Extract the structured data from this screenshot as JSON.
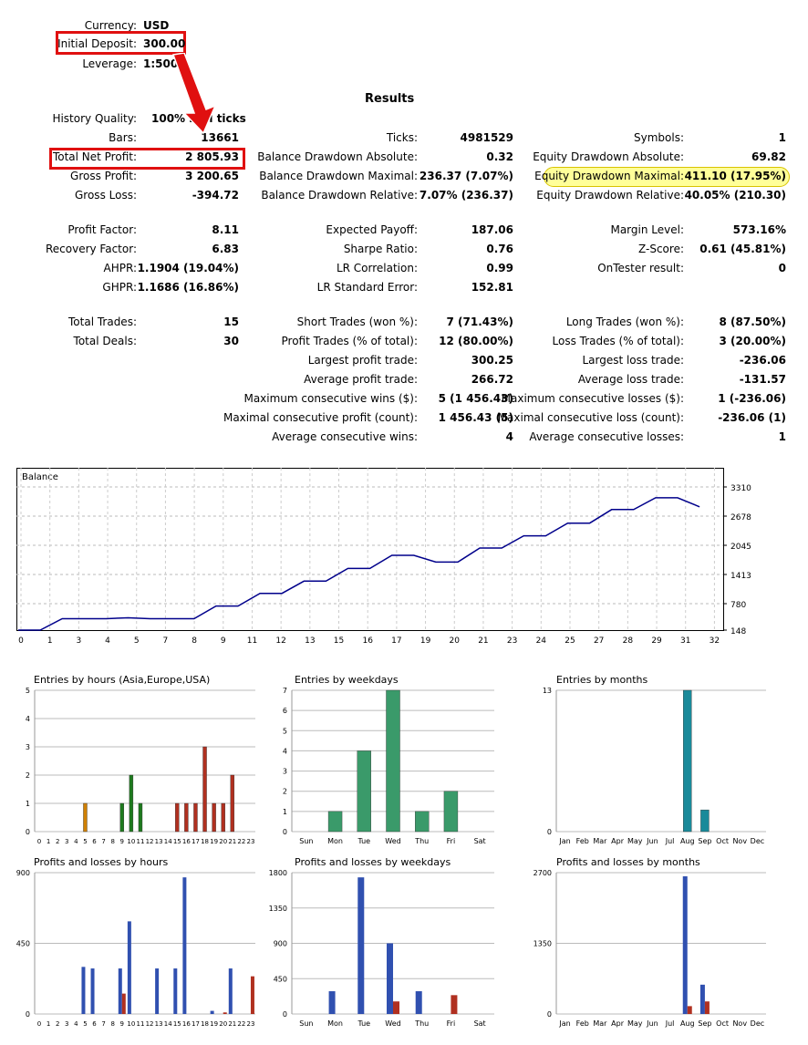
{
  "header": {
    "currency_label": "Currency:",
    "currency_value": "USD",
    "deposit_label": "Initial Deposit:",
    "deposit_value": "300.00",
    "leverage_label": "Leverage:",
    "leverage_value": "1:500",
    "results_title": "Results"
  },
  "col1": [
    {
      "label": "History Quality:",
      "value": "100% real ticks"
    },
    {
      "label": "Bars:",
      "value": "13661"
    },
    {
      "label": "Total Net Profit:",
      "value": "2 805.93"
    },
    {
      "label": "Gross Profit:",
      "value": "3 200.65"
    },
    {
      "label": "Gross Loss:",
      "value": "-394.72"
    },
    {
      "label": "Profit Factor:",
      "value": "8.11"
    },
    {
      "label": "Recovery Factor:",
      "value": "6.83"
    },
    {
      "label": "AHPR:",
      "value": "1.1904 (19.04%)"
    },
    {
      "label": "GHPR:",
      "value": "1.1686 (16.86%)"
    },
    {
      "label": "Total Trades:",
      "value": "15"
    },
    {
      "label": "Total Deals:",
      "value": "30"
    }
  ],
  "col2": [
    {
      "label": "Ticks:",
      "value": "4981529"
    },
    {
      "label": "Balance Drawdown Absolute:",
      "value": "0.32"
    },
    {
      "label": "Balance Drawdown Maximal:",
      "value": "236.37 (7.07%)"
    },
    {
      "label": "Balance Drawdown Relative:",
      "value": "7.07% (236.37)"
    },
    {
      "label": "Expected Payoff:",
      "value": "187.06"
    },
    {
      "label": "Sharpe Ratio:",
      "value": "0.76"
    },
    {
      "label": "LR Correlation:",
      "value": "0.99"
    },
    {
      "label": "LR Standard Error:",
      "value": "152.81"
    },
    {
      "label": "Short Trades (won %):",
      "value": "7 (71.43%)"
    },
    {
      "label": "Profit Trades (% of total):",
      "value": "12 (80.00%)"
    },
    {
      "label": "Largest profit trade:",
      "value": "300.25"
    },
    {
      "label": "Average profit trade:",
      "value": "266.72"
    },
    {
      "label": "Maximum consecutive wins ($):",
      "value": "5 (1 456.43)"
    },
    {
      "label": "Maximal consecutive profit (count):",
      "value": "1 456.43 (5)"
    },
    {
      "label": "Average consecutive wins:",
      "value": "4"
    }
  ],
  "col3": [
    {
      "label": "Symbols:",
      "value": "1"
    },
    {
      "label": "Equity Drawdown Absolute:",
      "value": "69.82"
    },
    {
      "label": "Equity Drawdown Maximal:",
      "value": "411.10 (17.95%)"
    },
    {
      "label": "Equity Drawdown Relative:",
      "value": "40.05% (210.30)"
    },
    {
      "label": "Margin Level:",
      "value": "573.16%"
    },
    {
      "label": "Z-Score:",
      "value": "0.61 (45.81%)"
    },
    {
      "label": "OnTester result:",
      "value": "0"
    },
    {
      "label": "Long Trades (won %):",
      "value": "8 (87.50%)"
    },
    {
      "label": "Loss Trades (% of total):",
      "value": "3 (20.00%)"
    },
    {
      "label": "Largest loss trade:",
      "value": "-236.06"
    },
    {
      "label": "Average loss trade:",
      "value": "-131.57"
    },
    {
      "label": "Maximum consecutive losses ($):",
      "value": "1 (-236.06)"
    },
    {
      "label": "Maximal consecutive loss (count):",
      "value": "-236.06 (1)"
    },
    {
      "label": "Average consecutive losses:",
      "value": "1"
    }
  ],
  "colors": {
    "highlight_box": "#e01010",
    "highlight_pill": "#ffff99",
    "balance_line": "#00008b",
    "bar_green": "#1e7a1e",
    "bar_orange": "#d08000",
    "bar_red": "#b03020",
    "bar_blue": "#3050b0",
    "bar_teal": "#1a8a9a",
    "bar_sea": "#3a9a6a"
  },
  "chart_data": [
    {
      "type": "line",
      "title": "Balance",
      "x": [
        0,
        1,
        2,
        3,
        4,
        5,
        6,
        7,
        8,
        9,
        10,
        11,
        12,
        13,
        14,
        15,
        16,
        17,
        18,
        19,
        20,
        21,
        22,
        23,
        24,
        25,
        26,
        27,
        28,
        29,
        30,
        31
      ],
      "y": [
        148,
        148,
        400,
        400,
        400,
        420,
        400,
        400,
        400,
        680,
        680,
        960,
        960,
        1230,
        1230,
        1510,
        1510,
        1800,
        1800,
        1650,
        1650,
        1960,
        1960,
        2230,
        2230,
        2510,
        2510,
        2810,
        2810,
        3070,
        3070,
        2870
      ],
      "x_ticks": [
        "0",
        "1",
        "3",
        "4",
        "5",
        "7",
        "8",
        "9",
        "11",
        "12",
        "13",
        "15",
        "16",
        "17",
        "19",
        "20",
        "21",
        "23",
        "24",
        "25",
        "27",
        "28",
        "29",
        "31",
        "32"
      ],
      "y_ticks": [
        "3310",
        "2678",
        "2045",
        "1413",
        "780",
        "148"
      ],
      "ylim": [
        148,
        3500
      ]
    },
    {
      "type": "bar",
      "title": "Entries by hours (Asia,Europe,USA)",
      "categories": [
        "0",
        "1",
        "2",
        "3",
        "4",
        "5",
        "6",
        "7",
        "8",
        "9",
        "10",
        "11",
        "12",
        "13",
        "14",
        "15",
        "16",
        "17",
        "18",
        "19",
        "20",
        "21",
        "22",
        "23"
      ],
      "values": [
        0,
        0,
        0,
        0,
        0,
        1,
        0,
        0,
        0,
        1,
        2,
        1,
        0,
        0,
        0,
        1,
        1,
        1,
        3,
        1,
        1,
        2,
        0,
        0
      ],
      "y_ticks": [
        "5",
        "4",
        "3",
        "2",
        "1",
        "0"
      ],
      "ylim": [
        0,
        5
      ]
    },
    {
      "type": "bar",
      "title": "Entries by weekdays",
      "categories": [
        "Sun",
        "Mon",
        "Tue",
        "Wed",
        "Thu",
        "Fri",
        "Sat"
      ],
      "values": [
        0,
        1,
        4,
        7,
        1,
        2,
        0
      ],
      "y_ticks": [
        "7",
        "6",
        "5",
        "4",
        "3",
        "2",
        "1",
        "0"
      ],
      "ylim": [
        0,
        7
      ]
    },
    {
      "type": "bar",
      "title": "Entries by months",
      "categories": [
        "Jan",
        "Feb",
        "Mar",
        "Apr",
        "May",
        "Jun",
        "Jul",
        "Aug",
        "Sep",
        "Oct",
        "Nov",
        "Dec"
      ],
      "values": [
        0,
        0,
        0,
        0,
        0,
        0,
        0,
        13,
        2,
        0,
        0,
        0
      ],
      "y_ticks": [
        "13",
        "0"
      ],
      "ylim": [
        0,
        13
      ]
    },
    {
      "type": "bar",
      "title": "Profits and losses by hours",
      "categories": [
        "0",
        "1",
        "2",
        "3",
        "4",
        "5",
        "6",
        "7",
        "8",
        "9",
        "10",
        "11",
        "12",
        "13",
        "14",
        "15",
        "16",
        "17",
        "18",
        "19",
        "20",
        "21",
        "22",
        "23"
      ],
      "series": [
        {
          "values": [
            0,
            0,
            0,
            0,
            0,
            300,
            290,
            0,
            0,
            290,
            590,
            0,
            0,
            290,
            0,
            290,
            870,
            0,
            0,
            20,
            0,
            290,
            0,
            0
          ]
        },
        {
          "values": [
            0,
            0,
            0,
            0,
            0,
            0,
            0,
            0,
            0,
            130,
            0,
            0,
            0,
            0,
            0,
            0,
            0,
            0,
            0,
            0,
            10,
            0,
            0,
            240
          ]
        }
      ],
      "y_ticks": [
        "900",
        "450",
        "0"
      ],
      "ylim": [
        0,
        900
      ]
    },
    {
      "type": "bar",
      "title": "Profits and losses by weekdays",
      "categories": [
        "Sun",
        "Mon",
        "Tue",
        "Wed",
        "Thu",
        "Fri",
        "Sat"
      ],
      "series": [
        {
          "values": [
            0,
            290,
            1740,
            900,
            290,
            0,
            0
          ]
        },
        {
          "values": [
            0,
            0,
            0,
            160,
            0,
            240,
            0
          ]
        }
      ],
      "y_ticks": [
        "1800",
        "1350",
        "900",
        "450",
        "0"
      ],
      "ylim": [
        0,
        1800
      ]
    },
    {
      "type": "bar",
      "title": "Profits and losses by months",
      "categories": [
        "Jan",
        "Feb",
        "Mar",
        "Apr",
        "May",
        "Jun",
        "Jul",
        "Aug",
        "Sep",
        "Oct",
        "Nov",
        "Dec"
      ],
      "series": [
        {
          "values": [
            0,
            0,
            0,
            0,
            0,
            0,
            0,
            2630,
            560,
            0,
            0,
            0
          ]
        },
        {
          "values": [
            0,
            0,
            0,
            0,
            0,
            0,
            0,
            150,
            240,
            0,
            0,
            0
          ]
        }
      ],
      "y_ticks": [
        "2700",
        "1350",
        "0"
      ],
      "ylim": [
        0,
        2700
      ]
    }
  ]
}
